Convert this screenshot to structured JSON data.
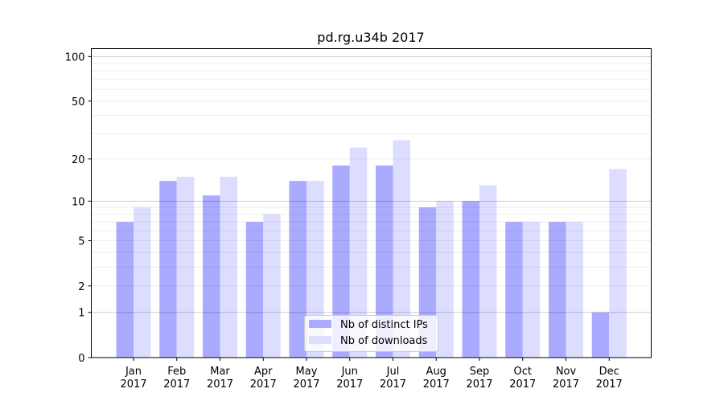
{
  "chart_data": {
    "type": "bar",
    "title": "pd.rg.u34b 2017",
    "xlabel": "",
    "ylabel": "",
    "yscale": "symlog (log10(1+y))",
    "ylim": [
      0,
      113
    ],
    "yticks": [
      0,
      1,
      2,
      5,
      10,
      20,
      50,
      100
    ],
    "ytick_labels": [
      "0",
      "1",
      "2",
      "5",
      "10",
      "20",
      "50",
      "100"
    ],
    "grid": true,
    "legend_position": "bottom-center",
    "categories": [
      [
        "Jan",
        "2017"
      ],
      [
        "Feb",
        "2017"
      ],
      [
        "Mar",
        "2017"
      ],
      [
        "Apr",
        "2017"
      ],
      [
        "May",
        "2017"
      ],
      [
        "Jun",
        "2017"
      ],
      [
        "Jul",
        "2017"
      ],
      [
        "Aug",
        "2017"
      ],
      [
        "Sep",
        "2017"
      ],
      [
        "Oct",
        "2017"
      ],
      [
        "Nov",
        "2017"
      ],
      [
        "Dec",
        "2017"
      ]
    ],
    "series": [
      {
        "name": "Nb of distinct IPs",
        "color": "#aaaaff",
        "values": [
          7,
          14,
          11,
          7,
          14,
          18,
          18,
          9,
          10,
          7,
          7,
          1
        ]
      },
      {
        "name": "Nb of downloads",
        "color": "#ddddff",
        "values": [
          9,
          15,
          15,
          8,
          14,
          24,
          27,
          10,
          13,
          7,
          7,
          17
        ]
      }
    ]
  }
}
